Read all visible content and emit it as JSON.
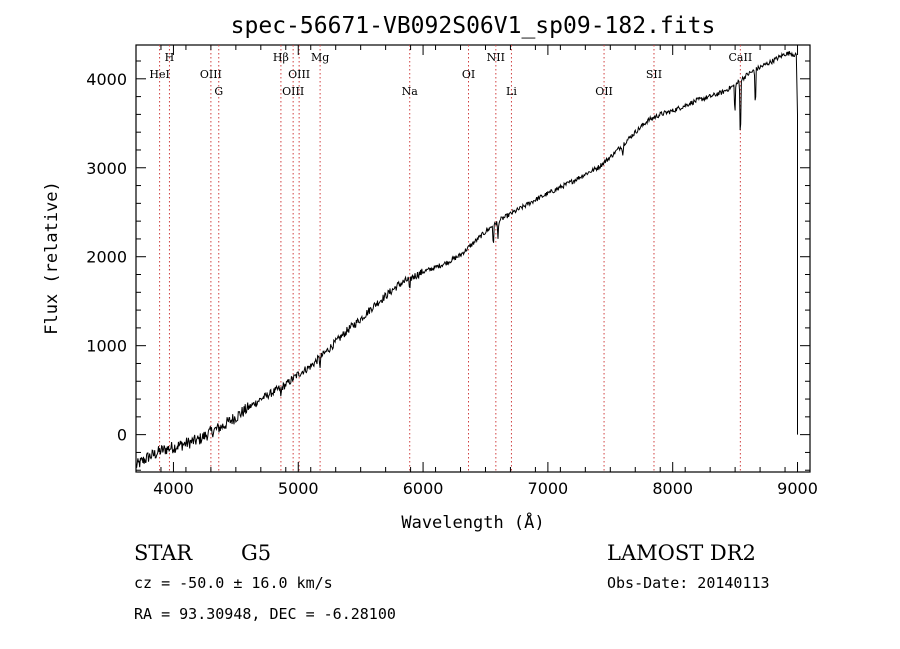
{
  "chart_data": {
    "type": "line",
    "title": "spec-56671-VB092S06V1_sp09-182.fits",
    "xlabel": "Wavelength (Å)",
    "ylabel": "Flux (relative)",
    "xlim": [
      3700,
      9100
    ],
    "ylim": [
      -420,
      4380
    ],
    "xticks": [
      4000,
      5000,
      6000,
      7000,
      8000,
      9000
    ],
    "yticks": [
      0,
      1000,
      2000,
      3000,
      4000
    ],
    "x_minor_step": 200,
    "y_minor_step": 200,
    "grid": false,
    "legend": "none",
    "line_color": "#000000",
    "marker_color": "#d04040",
    "series": [
      {
        "x": [
          3700,
          3750,
          3800,
          3850,
          3900,
          3950,
          4000,
          4100,
          4200,
          4300,
          4400,
          4500,
          4600,
          4700,
          4800,
          4900,
          5000,
          5100,
          5200,
          5300,
          5400,
          5500,
          5600,
          5700,
          5800,
          5900,
          6000,
          6100,
          6200,
          6300,
          6400,
          6500,
          6600,
          6700,
          6800,
          6900,
          7000,
          7100,
          7200,
          7300,
          7400,
          7500,
          7600,
          7700,
          7800,
          7900,
          8000,
          8100,
          8200,
          8300,
          8400,
          8500,
          8600,
          8700,
          8800,
          8900,
          8950,
          9000
        ],
        "y": [
          -350,
          -300,
          -250,
          -220,
          -180,
          -160,
          -140,
          -100,
          -60,
          30,
          100,
          200,
          300,
          400,
          480,
          560,
          680,
          770,
          900,
          1040,
          1180,
          1300,
          1440,
          1560,
          1680,
          1760,
          1830,
          1880,
          1940,
          2020,
          2150,
          2280,
          2400,
          2480,
          2560,
          2640,
          2710,
          2780,
          2850,
          2930,
          3000,
          3120,
          3260,
          3400,
          3530,
          3600,
          3640,
          3700,
          3760,
          3800,
          3850,
          3930,
          4050,
          4130,
          4200,
          4280,
          4290,
          4250
        ]
      }
    ],
    "absorption_dips": [
      {
        "x": 4861,
        "depth": 120
      },
      {
        "x": 5175,
        "depth": 90
      },
      {
        "x": 5893,
        "depth": 200
      },
      {
        "x": 6563,
        "depth": 250
      },
      {
        "x": 6600,
        "depth": 200
      },
      {
        "x": 7600,
        "depth": 120
      },
      {
        "x": 8498,
        "depth": 350
      },
      {
        "x": 8542,
        "depth": 750
      },
      {
        "x": 8662,
        "depth": 450
      }
    ],
    "line_markers": [
      {
        "label": "HeI",
        "x": 3889,
        "row": 2
      },
      {
        "label": "H",
        "x": 3968,
        "row": 1
      },
      {
        "label": "OIII",
        "x": 4300,
        "row": 2
      },
      {
        "label": "G",
        "x": 4363,
        "row": 3
      },
      {
        "label": "Hβ",
        "x": 4861,
        "row": 1
      },
      {
        "label": "OIII",
        "x": 4959,
        "row": 3
      },
      {
        "label": "OIII",
        "x": 5007,
        "row": 2
      },
      {
        "label": "Mg",
        "x": 5175,
        "row": 1
      },
      {
        "label": "Na",
        "x": 5893,
        "row": 3
      },
      {
        "label": "OI",
        "x": 6364,
        "row": 2
      },
      {
        "label": "NII",
        "x": 6583,
        "row": 1
      },
      {
        "label": "Li",
        "x": 6708,
        "row": 3
      },
      {
        "label": "OII",
        "x": 7450,
        "row": 3
      },
      {
        "label": "SII",
        "x": 7850,
        "row": 2
      },
      {
        "label": "CaII",
        "x": 8542,
        "row": 1
      }
    ]
  },
  "info": {
    "class_label": "STAR",
    "subclass": "G5",
    "survey": "LAMOST DR2",
    "redshift_line": "cz = -50.0 ± 16.0 km/s",
    "obs_date_line": "Obs-Date: 20140113",
    "coords_line": "RA =  93.30948, DEC =  -6.28100"
  }
}
